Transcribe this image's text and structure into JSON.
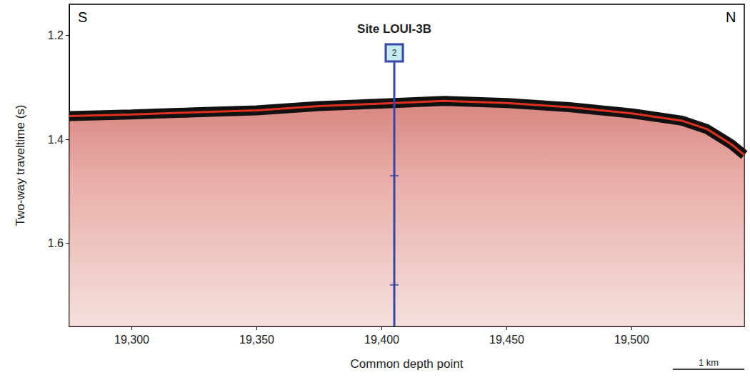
{
  "chart_data": {
    "type": "line",
    "corner_labels": [
      "S",
      "N"
    ],
    "xlabel": "Common depth point",
    "ylabel": "Two-way traveltime (s)",
    "scale_bar": "1 km",
    "x": [
      19275,
      19300,
      19325,
      19350,
      19375,
      19400,
      19425,
      19450,
      19475,
      19500,
      19520,
      19530,
      19540,
      19545
    ],
    "values": [
      1.355,
      1.352,
      1.348,
      1.344,
      1.336,
      1.331,
      1.326,
      1.33,
      1.338,
      1.35,
      1.364,
      1.38,
      1.41,
      1.43
    ],
    "color": "#e0301e",
    "xlim": [
      19275,
      19545
    ],
    "xticks": [
      {
        "value": 19300,
        "label": "19,300"
      },
      {
        "value": 19350,
        "label": "19,350"
      },
      {
        "value": 19400,
        "label": "19,400"
      },
      {
        "value": 19450,
        "label": "19,450"
      },
      {
        "value": 19500,
        "label": "19,500"
      }
    ],
    "ylim": [
      1.14,
      1.76
    ],
    "yticks": [
      1.2,
      1.4,
      1.6
    ],
    "site": {
      "label": "Site LOUI-3B",
      "hole": 2,
      "x": 19405,
      "y_top": 1.25,
      "y_bottom": 1.76,
      "marks": [
        1.47,
        1.68
      ],
      "color": "#3346a8"
    }
  }
}
